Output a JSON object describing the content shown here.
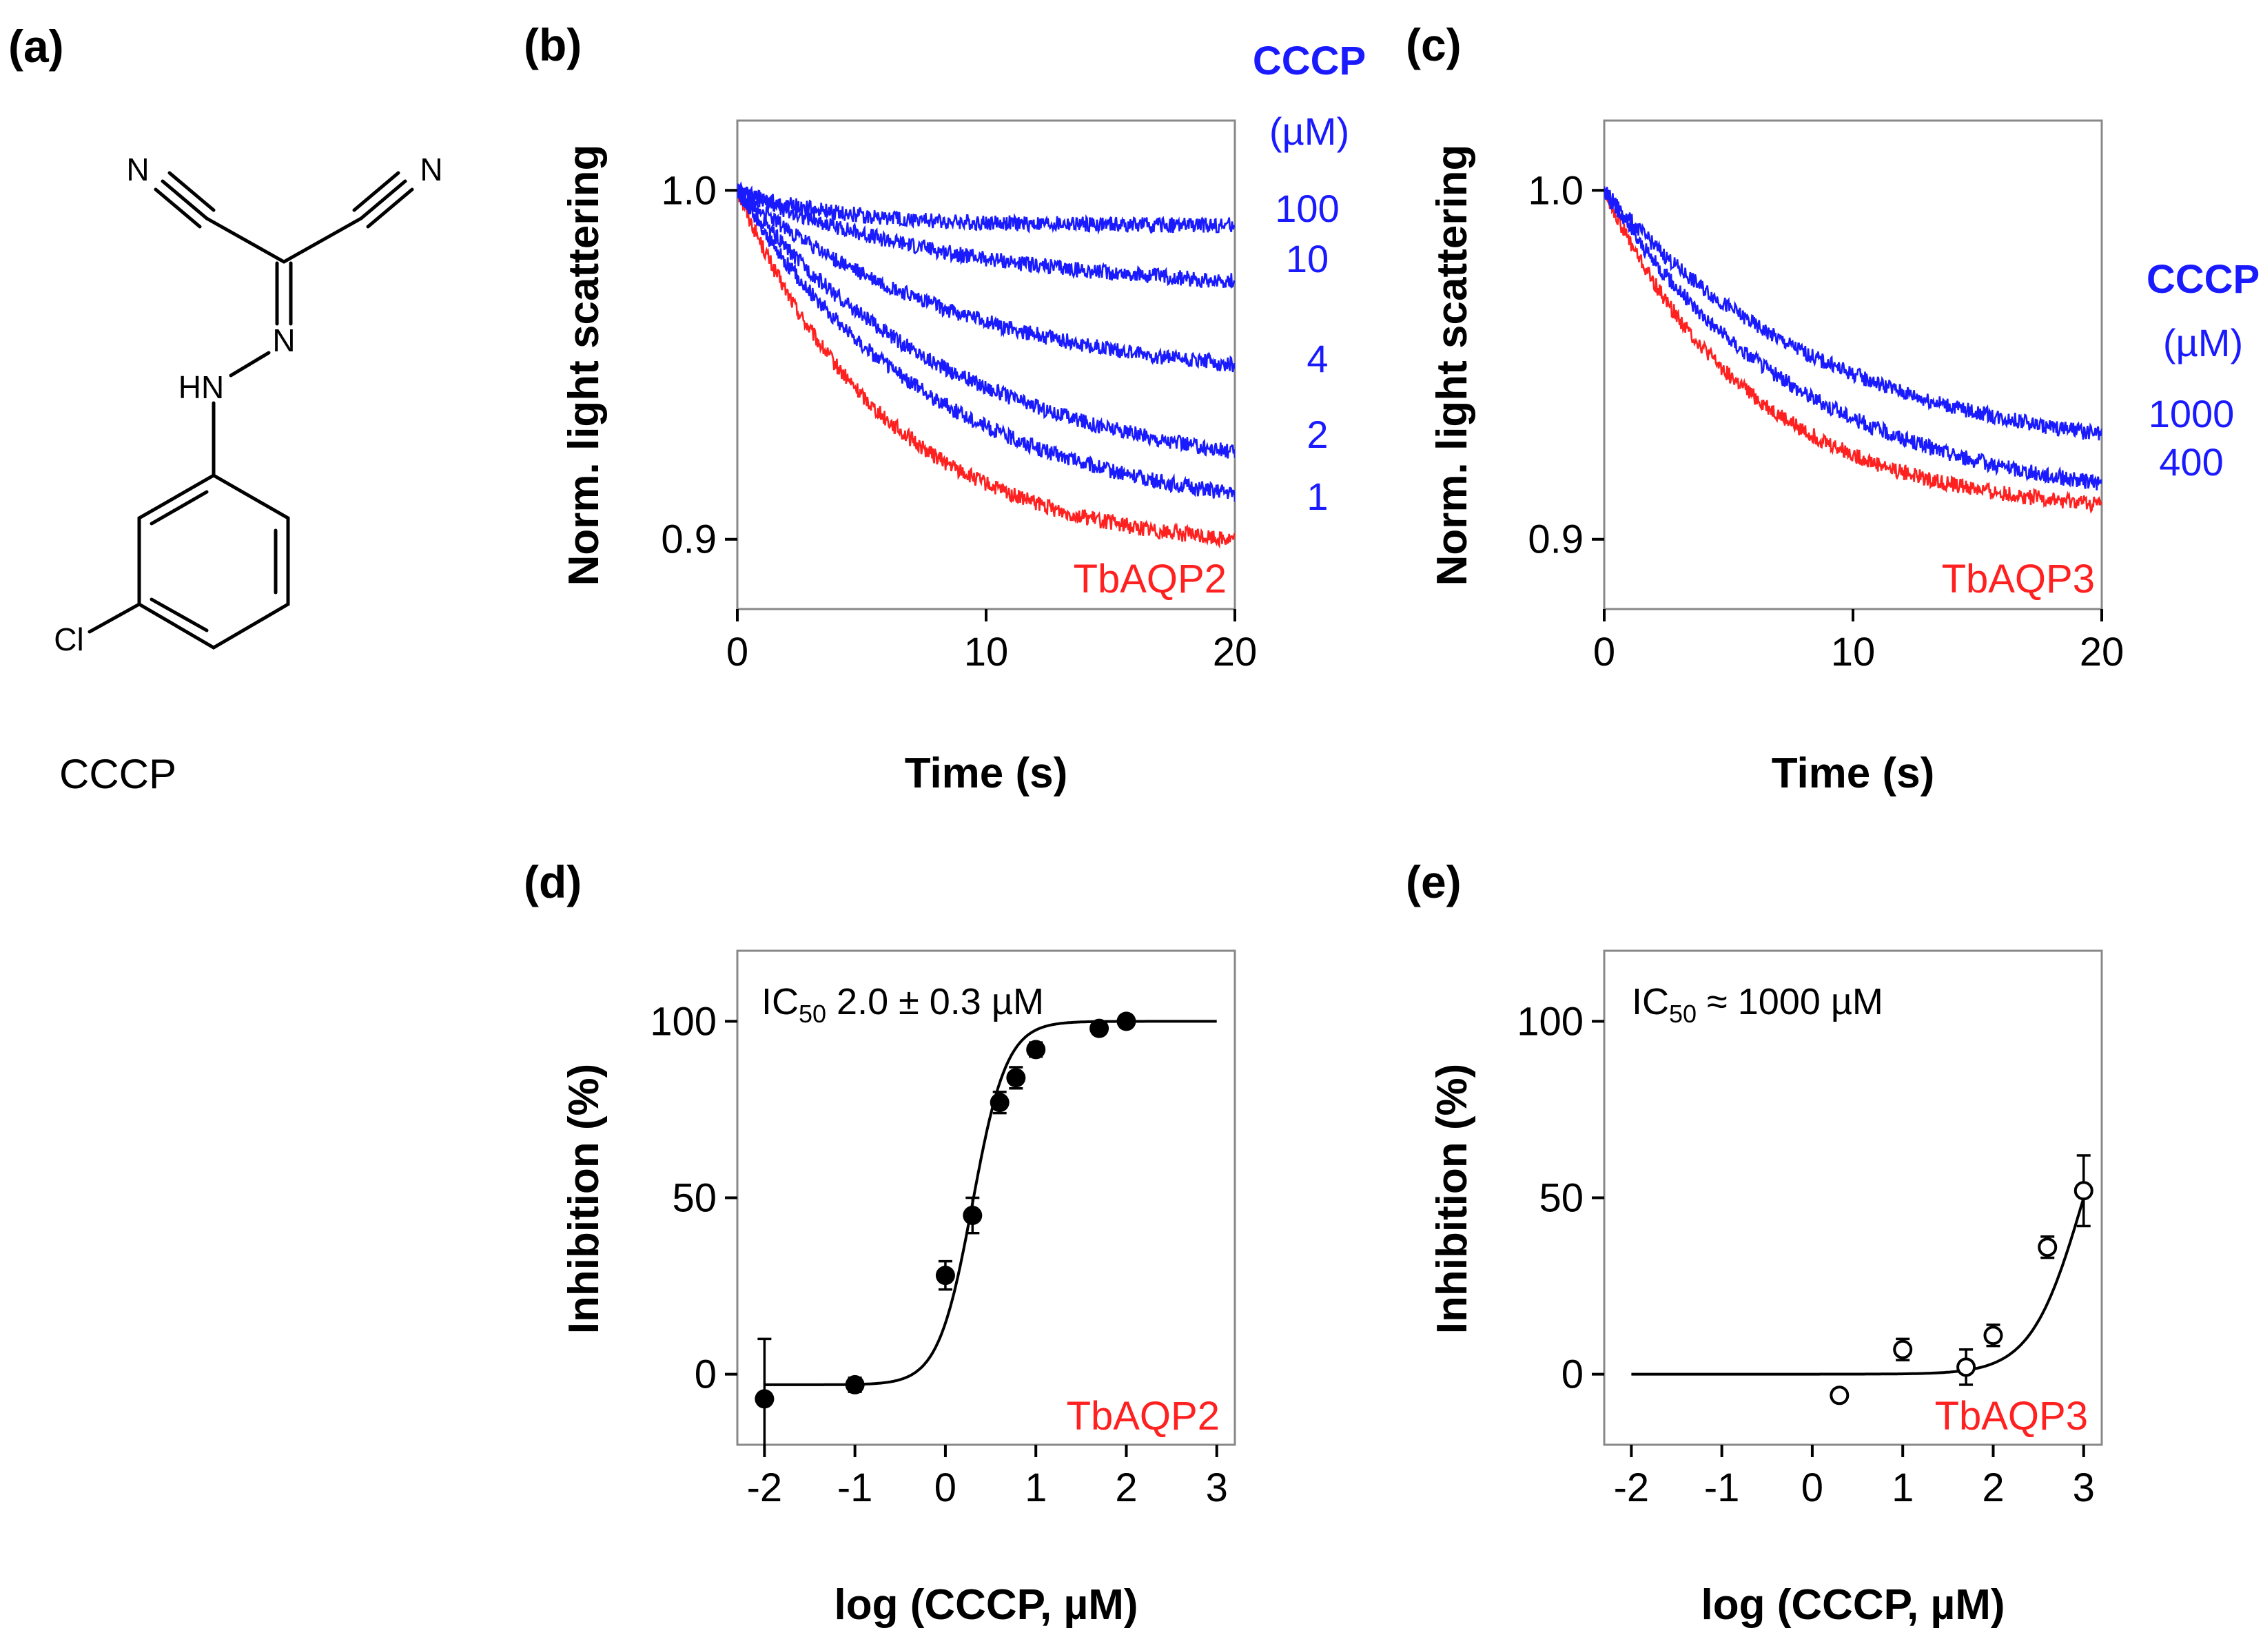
{
  "colors": {
    "blue": "#1a1aff",
    "red": "#ff2020",
    "black": "#000000"
  },
  "panel_a": {
    "label": "(a)",
    "compound_name": "CCCP",
    "atoms": {
      "n_left": "N",
      "n_right": "N",
      "n_center": "N",
      "hn": "HN",
      "cl": "Cl"
    }
  },
  "chart_data": [
    {
      "id": "b",
      "panel_label": "(b)",
      "type": "line",
      "xlabel": "Time (s)",
      "ylabel": "Norm. light scattering",
      "xlim": [
        0,
        20
      ],
      "ylim": [
        0.88,
        1.02
      ],
      "xticks": [
        {
          "v": 0,
          "t": "0"
        },
        {
          "v": 10,
          "t": "10"
        },
        {
          "v": 20,
          "t": "20"
        }
      ],
      "yticks": [
        {
          "v": 0.9,
          "t": "0.9"
        },
        {
          "v": 1.0,
          "t": "1.0"
        }
      ],
      "legend_title_1": "CCCP",
      "legend_title_2": "(µM)",
      "control_label": "TbAQP2",
      "series": [
        {
          "name": "TbAQP2",
          "color": "red",
          "endpoint": 0.9,
          "tau": 6.0
        },
        {
          "name": "1",
          "color": "blue",
          "endpoint": 0.913,
          "tau": 8.0
        },
        {
          "name": "2",
          "color": "blue",
          "endpoint": 0.925,
          "tau": 9.0
        },
        {
          "name": "4",
          "color": "blue",
          "endpoint": 0.95,
          "tau": 9.0
        },
        {
          "name": "10",
          "color": "blue",
          "endpoint": 0.974,
          "tau": 9.0
        },
        {
          "name": "100",
          "color": "blue",
          "endpoint": 0.99,
          "tau": 4.0
        }
      ]
    },
    {
      "id": "c",
      "panel_label": "(c)",
      "type": "line",
      "xlabel": "Time (s)",
      "ylabel": "Norm. light scattering",
      "xlim": [
        0,
        20
      ],
      "ylim": [
        0.88,
        1.02
      ],
      "xticks": [
        {
          "v": 0,
          "t": "0"
        },
        {
          "v": 10,
          "t": "10"
        },
        {
          "v": 20,
          "t": "20"
        }
      ],
      "yticks": [
        {
          "v": 0.9,
          "t": "0.9"
        },
        {
          "v": 1.0,
          "t": "1.0"
        }
      ],
      "legend_title_1": "CCCP",
      "legend_title_2": "(µM)",
      "control_label": "TbAQP3",
      "series": [
        {
          "name": "TbAQP3",
          "color": "red",
          "endpoint": 0.91,
          "tau": 6.0
        },
        {
          "name": "400",
          "color": "blue",
          "endpoint": 0.916,
          "tau": 8.0
        },
        {
          "name": "1000",
          "color": "blue",
          "endpoint": 0.93,
          "tau": 9.0
        }
      ]
    },
    {
      "id": "d",
      "panel_label": "(d)",
      "type": "scatter",
      "xlabel": "log (CCCP, µM)",
      "ylabel": "Inhibition (%)",
      "xlim": [
        -2.3,
        3.2
      ],
      "ylim": [
        -20,
        120
      ],
      "xticks": [
        {
          "v": -2,
          "t": "-2"
        },
        {
          "v": -1,
          "t": "-1"
        },
        {
          "v": 0,
          "t": "0"
        },
        {
          "v": 1,
          "t": "1"
        },
        {
          "v": 2,
          "t": "2"
        },
        {
          "v": 3,
          "t": "3"
        }
      ],
      "yticks": [
        {
          "v": 0,
          "t": "0"
        },
        {
          "v": 50,
          "t": "50"
        },
        {
          "v": 100,
          "t": "100"
        }
      ],
      "annotation": "IC",
      "annotation_sub": "50",
      "annotation_rest": " 2.0 ± 0.3 µM",
      "control_label": "TbAQP2",
      "marker": "filled",
      "fit": {
        "bottom": -3,
        "top": 100,
        "log_ic50": 0.3,
        "slope": 2.3,
        "x_range": [
          -2,
          3
        ]
      },
      "points": [
        {
          "x": -2,
          "y": -7,
          "err": 17
        },
        {
          "x": -1,
          "y": -3,
          "err": 2
        },
        {
          "x": 0,
          "y": 28,
          "err": 4
        },
        {
          "x": 0.3,
          "y": 45,
          "err": 5
        },
        {
          "x": 0.6,
          "y": 77,
          "err": 3
        },
        {
          "x": 0.78,
          "y": 84,
          "err": 3
        },
        {
          "x": 1,
          "y": 92,
          "err": 2
        },
        {
          "x": 1.7,
          "y": 98,
          "err": 1
        },
        {
          "x": 2,
          "y": 100,
          "err": 1
        }
      ]
    },
    {
      "id": "e",
      "panel_label": "(e)",
      "type": "scatter",
      "xlabel": "log (CCCP, µM)",
      "ylabel": "Inhibition (%)",
      "xlim": [
        -2.3,
        3.2
      ],
      "ylim": [
        -20,
        120
      ],
      "xticks": [
        {
          "v": -2,
          "t": "-2"
        },
        {
          "v": -1,
          "t": "-1"
        },
        {
          "v": 0,
          "t": "0"
        },
        {
          "v": 1,
          "t": "1"
        },
        {
          "v": 2,
          "t": "2"
        },
        {
          "v": 3,
          "t": "3"
        }
      ],
      "yticks": [
        {
          "v": 0,
          "t": "0"
        },
        {
          "v": 50,
          "t": "50"
        },
        {
          "v": 100,
          "t": "100"
        }
      ],
      "annotation": "IC",
      "annotation_sub": "50",
      "annotation_rest": " ≈ 1000 µM",
      "control_label": "TbAQP3",
      "marker": "open",
      "fit": {
        "bottom": 0,
        "top": 100,
        "log_ic50": 3.0,
        "slope": 1.5,
        "x_range": [
          -2,
          3
        ]
      },
      "points": [
        {
          "x": 0.3,
          "y": -6,
          "err": 0
        },
        {
          "x": 1,
          "y": 7,
          "err": 3
        },
        {
          "x": 1.7,
          "y": 2,
          "err": 5
        },
        {
          "x": 2,
          "y": 11,
          "err": 3
        },
        {
          "x": 2.6,
          "y": 36,
          "err": 3
        },
        {
          "x": 3,
          "y": 52,
          "err": 10
        }
      ]
    }
  ]
}
